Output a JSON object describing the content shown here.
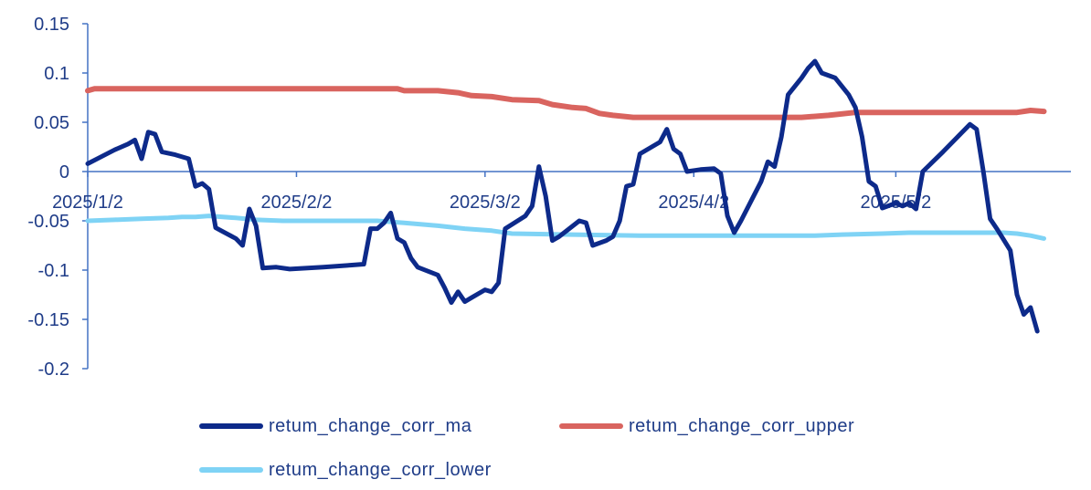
{
  "chart_data": {
    "type": "line",
    "title": "",
    "xlabel": "",
    "ylabel": "",
    "ylim": [
      -0.2,
      0.15
    ],
    "yticks": [
      "0.15",
      "0.1",
      "0.05",
      "0",
      "-0.05",
      "-0.1",
      "-0.15",
      "-0.2"
    ],
    "xtick_labels": [
      "2025/1/2",
      "2025/2/2",
      "2025/3/2",
      "2025/4/2",
      "2025/5/2"
    ],
    "x_start": "2025/1/2",
    "x_end": "2025/5/28",
    "x_tick_dates": [
      "2025/1/2",
      "2025/2/2",
      "2025/3/2",
      "2025/4/2",
      "2025/5/2"
    ],
    "grid": false,
    "legend_position": "bottom",
    "series": [
      {
        "name": "retum_change_corr_ma",
        "color": "#0d2a8a",
        "points": [
          [
            "2025/1/2",
            0.008
          ],
          [
            "2025/1/4",
            0.015
          ],
          [
            "2025/1/6",
            0.022
          ],
          [
            "2025/1/8",
            0.028
          ],
          [
            "2025/1/9",
            0.032
          ],
          [
            "2025/1/10",
            0.013
          ],
          [
            "2025/1/11",
            0.04
          ],
          [
            "2025/1/12",
            0.038
          ],
          [
            "2025/1/13",
            0.02
          ],
          [
            "2025/1/15",
            0.017
          ],
          [
            "2025/1/17",
            0.013
          ],
          [
            "2025/1/18",
            -0.015
          ],
          [
            "2025/1/19",
            -0.012
          ],
          [
            "2025/1/20",
            -0.018
          ],
          [
            "2025/1/21",
            -0.057
          ],
          [
            "2025/1/24",
            -0.068
          ],
          [
            "2025/1/25",
            -0.075
          ],
          [
            "2025/1/26",
            -0.038
          ],
          [
            "2025/1/27",
            -0.055
          ],
          [
            "2025/1/28",
            -0.098
          ],
          [
            "2025/1/30",
            -0.097
          ],
          [
            "2025/2/1",
            -0.099
          ],
          [
            "2025/2/6",
            -0.097
          ],
          [
            "2025/2/10",
            -0.095
          ],
          [
            "2025/2/12",
            -0.094
          ],
          [
            "2025/2/13",
            -0.058
          ],
          [
            "2025/2/14",
            -0.058
          ],
          [
            "2025/2/15",
            -0.052
          ],
          [
            "2025/2/16",
            -0.042
          ],
          [
            "2025/2/17",
            -0.068
          ],
          [
            "2025/2/18",
            -0.072
          ],
          [
            "2025/2/19",
            -0.088
          ],
          [
            "2025/2/20",
            -0.097
          ],
          [
            "2025/2/23",
            -0.105
          ],
          [
            "2025/2/24",
            -0.118
          ],
          [
            "2025/2/25",
            -0.133
          ],
          [
            "2025/2/26",
            -0.122
          ],
          [
            "2025/2/27",
            -0.132
          ],
          [
            "2025/2/28",
            -0.128
          ],
          [
            "2025/3/2",
            -0.12
          ],
          [
            "2025/3/3",
            -0.122
          ],
          [
            "2025/3/4",
            -0.113
          ],
          [
            "2025/3/5",
            -0.058
          ],
          [
            "2025/3/8",
            -0.045
          ],
          [
            "2025/3/9",
            -0.035
          ],
          [
            "2025/3/10",
            0.005
          ],
          [
            "2025/3/11",
            -0.025
          ],
          [
            "2025/3/12",
            -0.07
          ],
          [
            "2025/3/13",
            -0.066
          ],
          [
            "2025/3/16",
            -0.05
          ],
          [
            "2025/3/17",
            -0.052
          ],
          [
            "2025/3/18",
            -0.075
          ],
          [
            "2025/3/20",
            -0.07
          ],
          [
            "2025/3/21",
            -0.066
          ],
          [
            "2025/3/22",
            -0.05
          ],
          [
            "2025/3/23",
            -0.015
          ],
          [
            "2025/3/24",
            -0.013
          ],
          [
            "2025/3/25",
            0.018
          ],
          [
            "2025/3/28",
            0.03
          ],
          [
            "2025/3/29",
            0.043
          ],
          [
            "2025/3/30",
            0.023
          ],
          [
            "2025/3/31",
            0.018
          ],
          [
            "2025/4/1",
            0.0
          ],
          [
            "2025/4/3",
            0.002
          ],
          [
            "2025/4/5",
            0.003
          ],
          [
            "2025/4/6",
            -0.002
          ],
          [
            "2025/4/7",
            -0.045
          ],
          [
            "2025/4/8",
            -0.062
          ],
          [
            "2025/4/9",
            -0.05
          ],
          [
            "2025/4/12",
            -0.01
          ],
          [
            "2025/4/13",
            0.01
          ],
          [
            "2025/4/14",
            0.005
          ],
          [
            "2025/4/15",
            0.035
          ],
          [
            "2025/4/16",
            0.078
          ],
          [
            "2025/4/18",
            0.095
          ],
          [
            "2025/4/19",
            0.105
          ],
          [
            "2025/4/20",
            0.112
          ],
          [
            "2025/4/21",
            0.1
          ],
          [
            "2025/4/23",
            0.095
          ],
          [
            "2025/4/25",
            0.078
          ],
          [
            "2025/4/26",
            0.065
          ],
          [
            "2025/4/27",
            0.035
          ],
          [
            "2025/4/28",
            -0.01
          ],
          [
            "2025/4/29",
            -0.015
          ],
          [
            "2025/4/30",
            -0.037
          ],
          [
            "2025/5/2",
            -0.032
          ],
          [
            "2025/5/3",
            -0.035
          ],
          [
            "2025/5/4",
            -0.032
          ],
          [
            "2025/5/5",
            -0.038
          ],
          [
            "2025/5/6",
            0.0
          ],
          [
            "2025/5/9",
            0.02
          ],
          [
            "2025/5/13",
            0.048
          ],
          [
            "2025/5/14",
            0.043
          ],
          [
            "2025/5/15",
            0.0
          ],
          [
            "2025/5/16",
            -0.048
          ],
          [
            "2025/5/17",
            -0.058
          ],
          [
            "2025/5/19",
            -0.08
          ],
          [
            "2025/5/20",
            -0.125
          ],
          [
            "2025/5/21",
            -0.145
          ],
          [
            "2025/5/22",
            -0.138
          ],
          [
            "2025/5/23",
            -0.162
          ]
        ]
      },
      {
        "name": "retum_change_corr_upper",
        "color": "#d9645f",
        "points": [
          [
            "2025/1/2",
            0.082
          ],
          [
            "2025/1/3",
            0.084
          ],
          [
            "2025/1/20",
            0.084
          ],
          [
            "2025/2/10",
            0.084
          ],
          [
            "2025/2/17",
            0.084
          ],
          [
            "2025/2/18",
            0.082
          ],
          [
            "2025/2/23",
            0.082
          ],
          [
            "2025/2/26",
            0.08
          ],
          [
            "2025/2/28",
            0.077
          ],
          [
            "2025/3/3",
            0.076
          ],
          [
            "2025/3/6",
            0.073
          ],
          [
            "2025/3/10",
            0.072
          ],
          [
            "2025/3/12",
            0.068
          ],
          [
            "2025/3/15",
            0.065
          ],
          [
            "2025/3/17",
            0.064
          ],
          [
            "2025/3/19",
            0.059
          ],
          [
            "2025/3/21",
            0.057
          ],
          [
            "2025/3/24",
            0.055
          ],
          [
            "2025/4/10",
            0.055
          ],
          [
            "2025/4/18",
            0.055
          ],
          [
            "2025/4/22",
            0.057
          ],
          [
            "2025/4/26",
            0.06
          ],
          [
            "2025/5/5",
            0.06
          ],
          [
            "2025/5/15",
            0.06
          ],
          [
            "2025/5/20",
            0.06
          ],
          [
            "2025/5/22",
            0.062
          ],
          [
            "2025/5/24",
            0.061
          ]
        ]
      },
      {
        "name": "retum_change_corr_lower",
        "color": "#7fd3f5",
        "points": [
          [
            "2025/1/2",
            -0.05
          ],
          [
            "2025/1/6",
            -0.049
          ],
          [
            "2025/1/10",
            -0.048
          ],
          [
            "2025/1/14",
            -0.047
          ],
          [
            "2025/1/16",
            -0.046
          ],
          [
            "2025/1/18",
            -0.046
          ],
          [
            "2025/1/20",
            -0.045
          ],
          [
            "2025/1/24",
            -0.047
          ],
          [
            "2025/1/27",
            -0.049
          ],
          [
            "2025/1/31",
            -0.05
          ],
          [
            "2025/2/14",
            -0.05
          ],
          [
            "2025/2/18",
            -0.052
          ],
          [
            "2025/2/23",
            -0.055
          ],
          [
            "2025/2/27",
            -0.058
          ],
          [
            "2025/3/3",
            -0.06
          ],
          [
            "2025/3/6",
            -0.063
          ],
          [
            "2025/3/15",
            -0.064
          ],
          [
            "2025/3/25",
            -0.065
          ],
          [
            "2025/4/10",
            -0.065
          ],
          [
            "2025/4/20",
            -0.065
          ],
          [
            "2025/4/24",
            -0.064
          ],
          [
            "2025/4/30",
            -0.063
          ],
          [
            "2025/5/4",
            -0.062
          ],
          [
            "2025/5/18",
            -0.062
          ],
          [
            "2025/5/20",
            -0.063
          ],
          [
            "2025/5/22",
            -0.065
          ],
          [
            "2025/5/24",
            -0.068
          ]
        ]
      }
    ]
  },
  "legend": {
    "items": [
      {
        "label": "retum_change_corr_ma",
        "color": "#0d2a8a"
      },
      {
        "label": "retum_change_corr_upper",
        "color": "#d9645f"
      },
      {
        "label": "retum_change_corr_lower",
        "color": "#7fd3f5"
      }
    ]
  }
}
